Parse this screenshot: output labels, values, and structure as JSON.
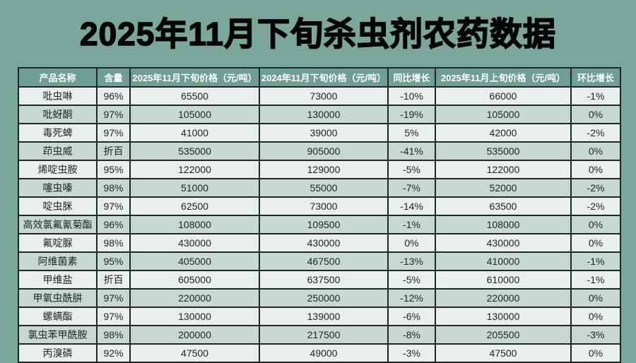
{
  "title": "2025年11月下旬杀虫剂农药数据",
  "colors": {
    "page_bg": "#7aa69c",
    "header_bg": "#6f9e94",
    "header_text": "#ffffff",
    "row_light": "#e8efee",
    "row_dark": "#c7d9d4",
    "border": "#1c2926",
    "cell_text": "#1e2422",
    "title_text": "#060606"
  },
  "chart_data": {
    "type": "table",
    "title": "2025年11月下旬杀虫剂农药数据",
    "columns": [
      "产品名称",
      "含量",
      "2025年11月下旬价格（元/吨）",
      "2024年11月下旬价格（元/吨）",
      "同比增长",
      "2025年11月上旬价格（元/吨）",
      "环比增长"
    ],
    "rows": [
      [
        "吡虫啉",
        "96%",
        "65500",
        "73000",
        "-10%",
        "66000",
        "-1%"
      ],
      [
        "吡蚜酮",
        "97%",
        "105000",
        "130000",
        "-19%",
        "105000",
        "0%"
      ],
      [
        "毒死蜱",
        "97%",
        "41000",
        "39000",
        "5%",
        "42000",
        "-2%"
      ],
      [
        "茚虫威",
        "折百",
        "535000",
        "905000",
        "-41%",
        "535000",
        "0%"
      ],
      [
        "烯啶虫胺",
        "95%",
        "122000",
        "129000",
        "-5%",
        "122000",
        "0%"
      ],
      [
        "噻虫嗪",
        "98%",
        "51000",
        "55000",
        "-7%",
        "52000",
        "-2%"
      ],
      [
        "啶虫脒",
        "97%",
        "62500",
        "73000",
        "-14%",
        "63500",
        "-2%"
      ],
      [
        "高效氯氟氰菊酯",
        "96%",
        "108000",
        "109500",
        "-1%",
        "108000",
        "0%"
      ],
      [
        "氟啶脲",
        "98%",
        "430000",
        "430000",
        "0%",
        "430000",
        "0%"
      ],
      [
        "阿维菌素",
        "95%",
        "405000",
        "467500",
        "-13%",
        "410000",
        "-1%"
      ],
      [
        "甲维盐",
        "折百",
        "605000",
        "637500",
        "-5%",
        "610000",
        "-1%"
      ],
      [
        "甲氧虫酰肼",
        "97%",
        "220000",
        "250000",
        "-12%",
        "220000",
        "0%"
      ],
      [
        "螺螨酯",
        "97%",
        "130000",
        "139000",
        "-6%",
        "130000",
        "0%"
      ],
      [
        "氯虫苯甲酰胺",
        "98%",
        "200000",
        "217500",
        "-8%",
        "205500",
        "-3%"
      ],
      [
        "丙溴磷",
        "92%",
        "47500",
        "49000",
        "-3%",
        "47500",
        "0%"
      ]
    ]
  }
}
